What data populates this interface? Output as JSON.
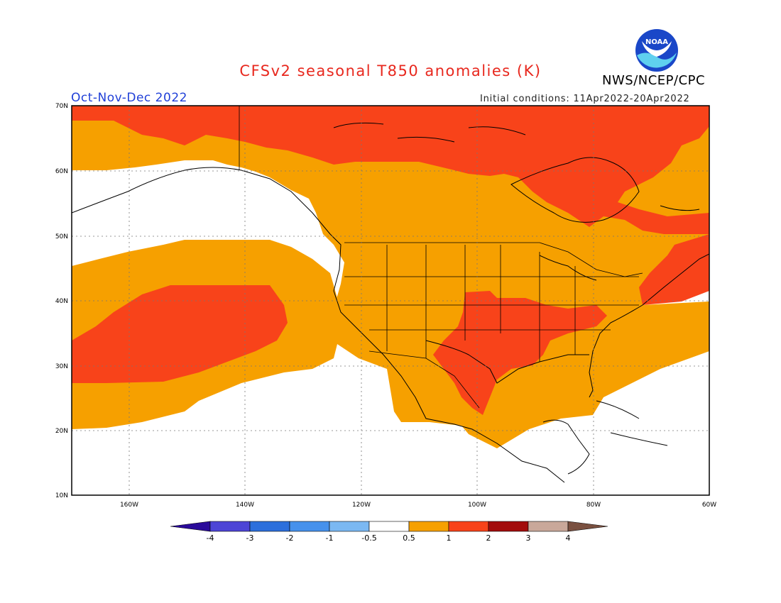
{
  "header": {
    "title": "CFSv2 seasonal T850 anomalies (K)",
    "org": "NWS/NCEP/CPC",
    "period": "Oct-Nov-Dec 2022",
    "initial_conditions": "Initial conditions: 11Apr2022-20Apr2022",
    "logo_text": "NOAA"
  },
  "axes": {
    "lat_labels": [
      "70N",
      "60N",
      "50N",
      "40N",
      "30N",
      "20N",
      "10N"
    ],
    "lon_labels": [
      "160W",
      "140W",
      "120W",
      "100W",
      "80W",
      "60W"
    ]
  },
  "colorbar": {
    "tick_labels": [
      "-4",
      "-3",
      "-2",
      "-1",
      "-0.5",
      "0.5",
      "1",
      "2",
      "3",
      "4"
    ],
    "colors": [
      "#2a0a9a",
      "#4d45d6",
      "#2c6fdc",
      "#4691ec",
      "#7bb8f2",
      "#ffffff",
      "#f6a000",
      "#f8431a",
      "#a30c0c",
      "#c9a89a",
      "#7a5040"
    ]
  },
  "colors": {
    "anomaly_0_5_to_1": "#f6a000",
    "anomaly_1_to_2": "#f8431a",
    "title_red": "#e8281e",
    "period_blue": "#1f3fd8"
  }
}
